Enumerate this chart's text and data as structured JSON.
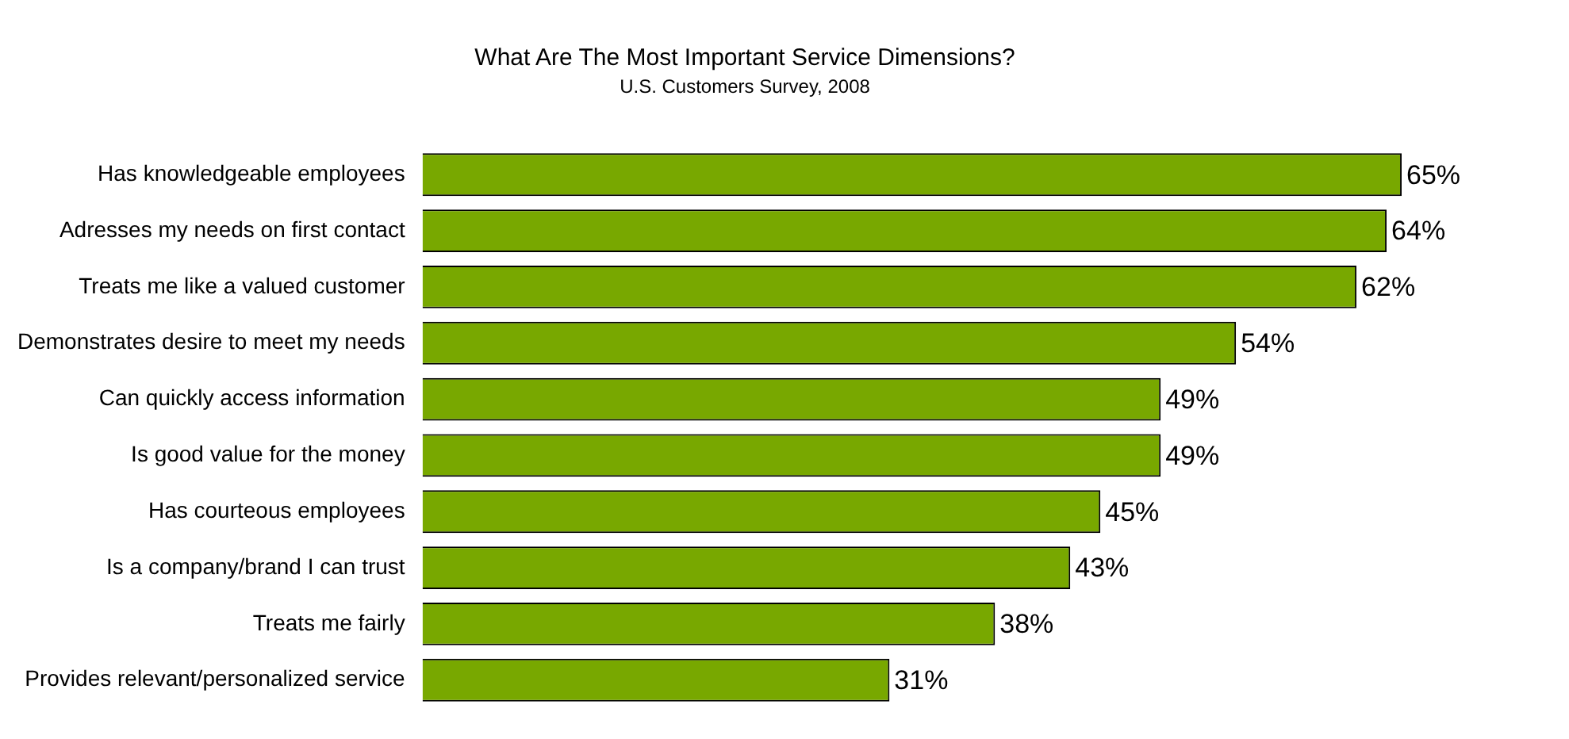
{
  "chart_data": {
    "type": "bar",
    "orientation": "horizontal",
    "title": "What Are The Most Important Service Dimensions?",
    "subtitle": "U.S. Customers Survey, 2008",
    "categories": [
      "Has knowledgeable employees",
      "Adresses my needs on first contact",
      "Treats me like a valued customer",
      "Demonstrates desire to meet my needs",
      "Can quickly access information",
      "Is good value for the money",
      "Has courteous employees",
      "Is a company/brand I can trust",
      "Treats me fairly",
      "Provides relevant/personalized service"
    ],
    "values": [
      65,
      64,
      62,
      54,
      49,
      49,
      45,
      43,
      38,
      31
    ],
    "value_labels": [
      "65%",
      "64%",
      "62%",
      "54%",
      "49%",
      "49%",
      "45%",
      "43%",
      "38%",
      "31%"
    ],
    "color": "#78a800"
  }
}
